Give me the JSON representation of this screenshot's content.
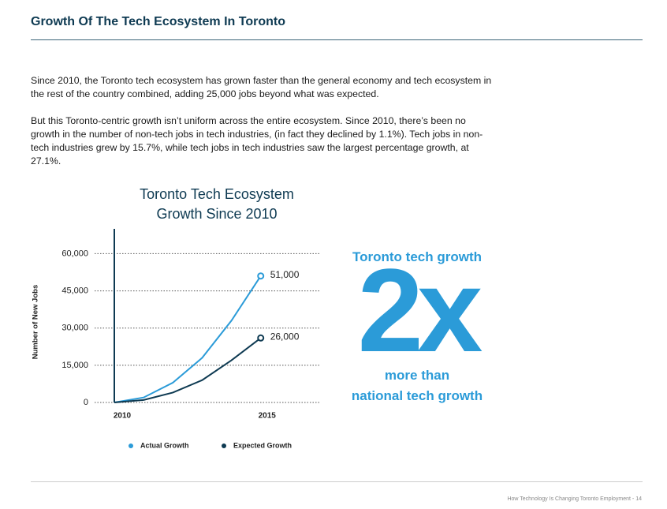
{
  "header": {
    "title": "Growth Of The Tech Ecosystem In Toronto"
  },
  "paragraphs": [
    "Since 2010, the Toronto tech ecosystem has grown faster than the general economy and tech ecosystem in the rest of the country combined, adding 25,000 jobs beyond what was expected.",
    "But this Toronto-centric growth isn’t uniform across the entire ecosystem. Since 2010, there’s been no growth in the number of non-tech jobs in tech industries, (in fact they declined by 1.1%). Tech jobs in non-tech industries grew by 15.7%, while tech jobs in tech industries saw the largest percentage growth, at 27.1%."
  ],
  "chart_data": {
    "type": "line",
    "title": "Toronto Tech Ecosystem Growth Since 2010",
    "y_label": "Number of New Jobs",
    "x": [
      2010,
      2011,
      2012,
      2013,
      2014,
      2015
    ],
    "xlim": [
      2010,
      2017
    ],
    "xticks": [
      2010,
      2015
    ],
    "ylim": [
      0,
      70000
    ],
    "yticks": [
      0,
      {
        "value": 15000,
        "label": "15,000"
      },
      {
        "value": 30000,
        "label": "30,000"
      },
      {
        "value": 45000,
        "label": "45,000"
      },
      {
        "value": 60000,
        "label": "60,000"
      }
    ],
    "grid": true,
    "legend": "bottom",
    "series": [
      {
        "name": "Actual Growth",
        "color": "#2b9bd8",
        "values": [
          0,
          2000,
          8000,
          18000,
          33000,
          51000
        ],
        "value_labels": [
          null,
          null,
          null,
          null,
          null,
          "51,000"
        ]
      },
      {
        "name": "Expected Growth",
        "color": "#0e3a52",
        "values": [
          0,
          1000,
          4000,
          9000,
          17000,
          26000
        ],
        "value_labels": [
          null,
          null,
          null,
          null,
          null,
          "26,000"
        ]
      }
    ]
  },
  "callout": {
    "top": "Toronto tech growth",
    "big": "2x",
    "bottom": [
      "more than",
      "national tech growth"
    ]
  },
  "footer": {
    "text": "How Technology Is Changing Toronto Employment - 14"
  }
}
